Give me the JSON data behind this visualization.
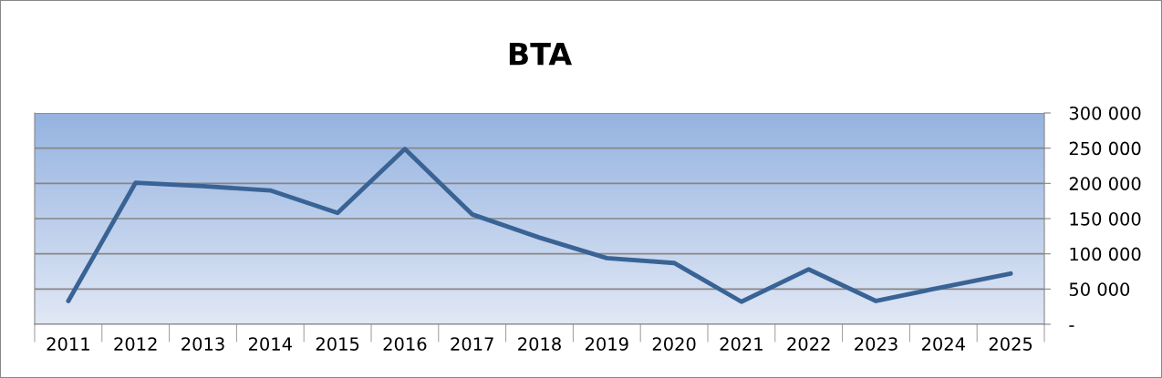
{
  "chart_data": {
    "type": "line",
    "title": "BTA",
    "categories": [
      "2011",
      "2012",
      "2013",
      "2014",
      "2015",
      "2016",
      "2017",
      "2018",
      "2019",
      "2020",
      "2021",
      "2022",
      "2023",
      "2024",
      "2025"
    ],
    "series": [
      {
        "color": "#3a6395",
        "values": [
          33000,
          201000,
          196000,
          190000,
          158000,
          249000,
          156000,
          123000,
          94000,
          87000,
          32000,
          78000,
          33000,
          53000,
          72000
        ]
      }
    ],
    "ylim": [
      0,
      300000
    ],
    "yticks": [
      {
        "value": 0,
        "label": "-"
      },
      {
        "value": 50000,
        "label": "50 000"
      },
      {
        "value": 100000,
        "label": "100 000"
      },
      {
        "value": 150000,
        "label": "150 000"
      },
      {
        "value": 200000,
        "label": "200 000"
      },
      {
        "value": 250000,
        "label": "250 000"
      },
      {
        "value": 300000,
        "label": "300 000"
      }
    ],
    "grid": "y",
    "legend": false,
    "marker": "none",
    "line_style": "solid"
  }
}
